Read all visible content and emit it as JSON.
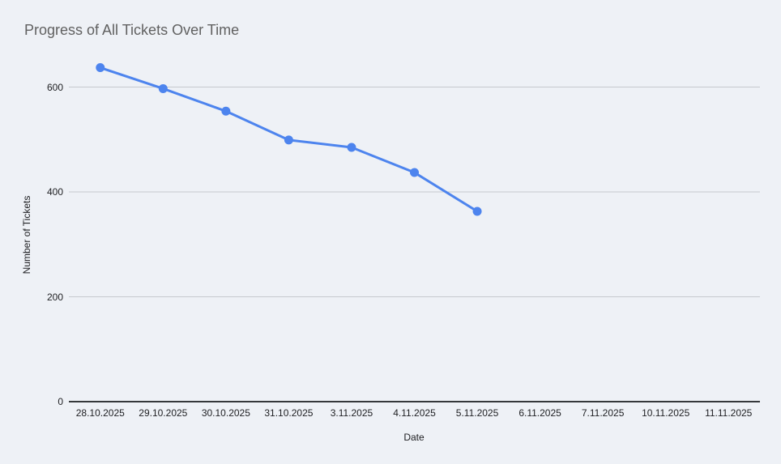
{
  "chart_data": {
    "type": "line",
    "title": "Progress of All Tickets Over Time",
    "xlabel": "Date",
    "ylabel": "Number of Tickets",
    "categories": [
      "28.10.2025",
      "29.10.2025",
      "30.10.2025",
      "31.10.2025",
      "3.11.2025",
      "4.11.2025",
      "5.11.2025",
      "6.11.2025",
      "7.11.2025",
      "10.11.2025",
      "11.11.2025"
    ],
    "values": [
      637,
      597,
      554,
      499,
      485,
      437,
      363,
      null,
      null,
      null,
      null
    ],
    "y_ticks": [
      0,
      200,
      400,
      600
    ],
    "ylim": [
      0,
      666
    ],
    "grid": true,
    "legend": "none",
    "marker": "circle"
  },
  "colors": {
    "background": "#eef1f6",
    "series_line": "#4d84ee",
    "title_text": "#616161",
    "axis_text": "#202124",
    "gridline": "#c6c9ce",
    "axis_line": "#35383b"
  }
}
